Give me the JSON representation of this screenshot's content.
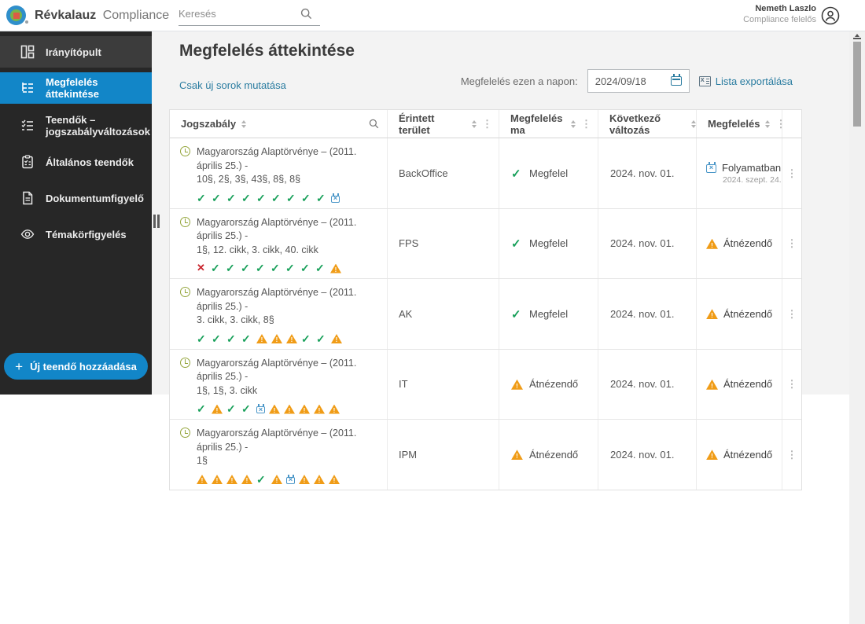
{
  "topbar": {
    "brand_primary": "Révkalauz",
    "brand_secondary": "Compliance",
    "search_placeholder": "Keresés",
    "user_name": "Nemeth Laszlo",
    "user_role": "Compliance felelős"
  },
  "sidebar": {
    "items": [
      {
        "label": "Irányítópult",
        "icon": "dashboard-icon",
        "active": false
      },
      {
        "label": "Megfelelés áttekintése",
        "icon": "compliance-overview-icon",
        "active": true
      },
      {
        "label": "Teendők – jogszabályváltozások",
        "icon": "task-list-icon",
        "active": false
      },
      {
        "label": "Általános teendők",
        "icon": "clipboard-icon",
        "active": false
      },
      {
        "label": "Dokumentumfigyelő",
        "icon": "document-icon",
        "active": false
      },
      {
        "label": "Témakörfigyelés",
        "icon": "eye-icon",
        "active": false
      }
    ],
    "add_task_button": "Új teendő hozzáadása"
  },
  "main": {
    "page_title": "Megfelelés áttekintése",
    "show_only_new_link": "Csak új sorok mutatása",
    "date_filter_label": "Megfelelés ezen a napon:",
    "date_value": "2024/09/18",
    "export_link": "Lista exportálása"
  },
  "table": {
    "columns": [
      {
        "label": "Jogszabály"
      },
      {
        "label": "Érintett terület"
      },
      {
        "label": "Megfelelés ma"
      },
      {
        "label": "Következő változás"
      },
      {
        "label": "Megfelelés"
      }
    ],
    "rows": [
      {
        "law_name": "Magyarország Alaptörvénye – (2011. április 25.) -",
        "law_sections": "10§, 2§, 3§, 43§, 8§, 8§",
        "status_icons": [
          "check",
          "check",
          "check",
          "check",
          "check",
          "check",
          "check",
          "check",
          "check",
          "calendar"
        ],
        "area": "BackOffice",
        "compliance_today": {
          "icon": "check",
          "label": "Megfelel"
        },
        "next_change": "2024. nov. 01.",
        "compliance": {
          "icon": "calendar",
          "label": "Folyamatban",
          "sublabel": "2024. szept. 24."
        }
      },
      {
        "law_name": "Magyarország Alaptörvénye – (2011. április 25.) -",
        "law_sections": "1§, 12. cikk, 3. cikk, 40. cikk",
        "status_icons": [
          "cross",
          "check",
          "check",
          "check",
          "check",
          "check",
          "check",
          "check",
          "check",
          "warning"
        ],
        "area": "FPS",
        "compliance_today": {
          "icon": "check",
          "label": "Megfelel"
        },
        "next_change": "2024. nov. 01.",
        "compliance": {
          "icon": "warning",
          "label": "Átnézendő",
          "sublabel": ""
        }
      },
      {
        "law_name": "Magyarország Alaptörvénye – (2011. április 25.) -",
        "law_sections": "3. cikk, 3. cikk, 8§",
        "status_icons": [
          "check",
          "check",
          "check",
          "check",
          "warning",
          "warning",
          "warning",
          "check",
          "check",
          "warning"
        ],
        "area": "AK",
        "compliance_today": {
          "icon": "check",
          "label": "Megfelel"
        },
        "next_change": "2024. nov. 01.",
        "compliance": {
          "icon": "warning",
          "label": "Átnézendő",
          "sublabel": ""
        }
      },
      {
        "law_name": "Magyarország Alaptörvénye – (2011. április 25.) -",
        "law_sections": "1§, 1§, 3. cikk",
        "status_icons": [
          "check",
          "warning",
          "check",
          "check",
          "calendar",
          "warning",
          "warning",
          "warning",
          "warning",
          "warning"
        ],
        "area": "IT",
        "compliance_today": {
          "icon": "warning",
          "label": "Átnézendő"
        },
        "next_change": "2024. nov. 01.",
        "compliance": {
          "icon": "warning",
          "label": "Átnézendő",
          "sublabel": ""
        }
      },
      {
        "law_name": "Magyarország Alaptörvénye – (2011. április 25.) -",
        "law_sections": "1§",
        "status_icons": [
          "warning",
          "warning",
          "warning",
          "warning",
          "check",
          "warning",
          "calendar",
          "warning",
          "warning",
          "warning"
        ],
        "area": "IPM",
        "compliance_today": {
          "icon": "warning",
          "label": "Átnézendő"
        },
        "next_change": "2024. nov. 01.",
        "compliance": {
          "icon": "warning",
          "label": "Átnézendő",
          "sublabel": ""
        }
      }
    ]
  },
  "colors": {
    "accent": "#1286c8",
    "success": "#18a05a",
    "warning": "#f09c17",
    "danger": "#c9252d",
    "calendar_blue": "#4a96c8",
    "link": "#2a7ca0",
    "sidebar_bg": "#272727"
  }
}
